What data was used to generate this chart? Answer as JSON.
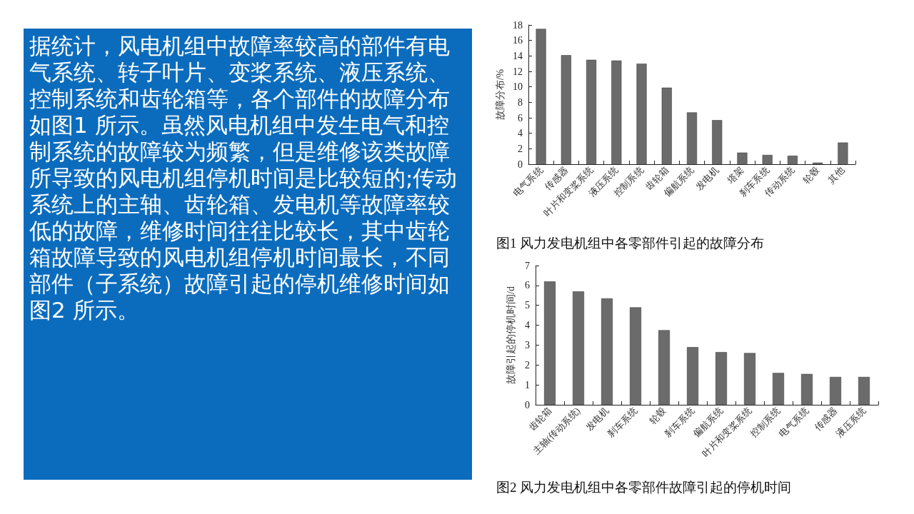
{
  "chart_data": [
    {
      "type": "other",
      "annotations": [
        "据统计，风电机组中故障率较高的部件有电气系统、转子叶片、变桨系统、液压系统、控制系统和齿轮箱等，各个部件的故障分布如图1 所示。虽然风电机组中发生电气和控制系统的故障较为频繁，但是维修该类故障所导致的风电机组停机时间是比较短的;传动系统上的主轴、齿轮箱、发电机等故障率较低的故障，维修时间往往比较长，其中齿轮箱故障导致的风电机组停机时间最长，不同部件（子系统）故障引起的停机维修时间如图2 所示。"
      ]
    },
    {
      "type": "bar",
      "title": "图1 风力发电机组中各零部件引起的故障分布",
      "ylabel": "故障分布/%",
      "categories": [
        "电气系统",
        "传感器",
        "叶片和变桨系统",
        "液压系统",
        "控制系统",
        "齿轮箱",
        "偏航系统",
        "发电机",
        "塔架",
        "刹车系统",
        "传动系统",
        "轮毂",
        "其他"
      ],
      "values": [
        17.5,
        14.1,
        13.5,
        13.4,
        13.0,
        9.9,
        6.7,
        5.7,
        1.5,
        1.2,
        1.1,
        0.2,
        2.8
      ],
      "color": "#6b6b6b",
      "ylim": [
        0,
        18
      ],
      "yticks": [
        0,
        2,
        4,
        6,
        8,
        10,
        12,
        14,
        16,
        18
      ],
      "grid": false
    },
    {
      "type": "bar",
      "title": "图2 风力发电机组中各零部件故障引起的停机时间",
      "ylabel": "故障引起的停机时间/d",
      "categories": [
        "齿轮箱",
        "主轴(传动系统)",
        "发电机",
        "刹车系统",
        "轮毂",
        "刹车系统",
        "偏航系统",
        "叶片和变桨系统",
        "控制系统",
        "电气系统",
        "传感器",
        "液压系统"
      ],
      "values": [
        6.2,
        5.7,
        5.35,
        4.9,
        3.75,
        2.9,
        2.65,
        2.6,
        1.6,
        1.55,
        1.4,
        1.4
      ],
      "color": "#6b6b6b",
      "ylim": [
        0,
        7
      ],
      "yticks": [
        0,
        1,
        2,
        3,
        4,
        5,
        6,
        7
      ],
      "grid": false
    }
  ]
}
